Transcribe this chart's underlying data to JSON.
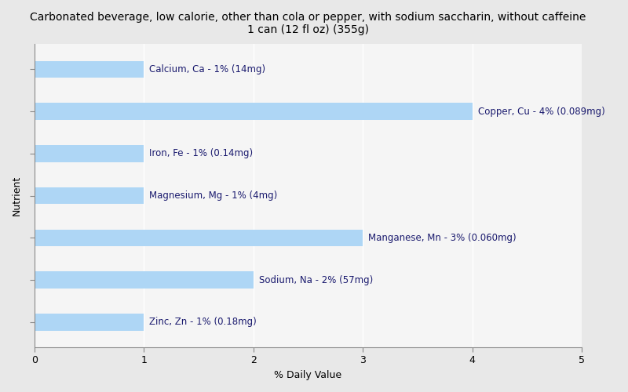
{
  "title_line1": "Carbonated beverage, low calorie, other than cola or pepper, with sodium saccharin, without caffeine",
  "title_line2": "1 can (12 fl oz) (355g)",
  "nutrients": [
    "Zinc, Zn - 1% (0.18mg)",
    "Sodium, Na - 2% (57mg)",
    "Manganese, Mn - 3% (0.060mg)",
    "Magnesium, Mg - 1% (4mg)",
    "Iron, Fe - 1% (0.14mg)",
    "Copper, Cu - 4% (0.089mg)",
    "Calcium, Ca - 1% (14mg)"
  ],
  "values": [
    1,
    2,
    3,
    1,
    1,
    4,
    1
  ],
  "bar_color": "#aed6f5",
  "label_color": "#1a1a6e",
  "xlabel": "% Daily Value",
  "ylabel": "Nutrient",
  "xlim": [
    0,
    5
  ],
  "xticks": [
    0,
    1,
    2,
    3,
    4,
    5
  ],
  "background_color": "#e8e8e8",
  "plot_bg_color": "#f5f5f5",
  "title_fontsize": 10,
  "label_fontsize": 8.5,
  "tick_fontsize": 9,
  "axis_label_fontsize": 9,
  "bar_height": 0.4
}
